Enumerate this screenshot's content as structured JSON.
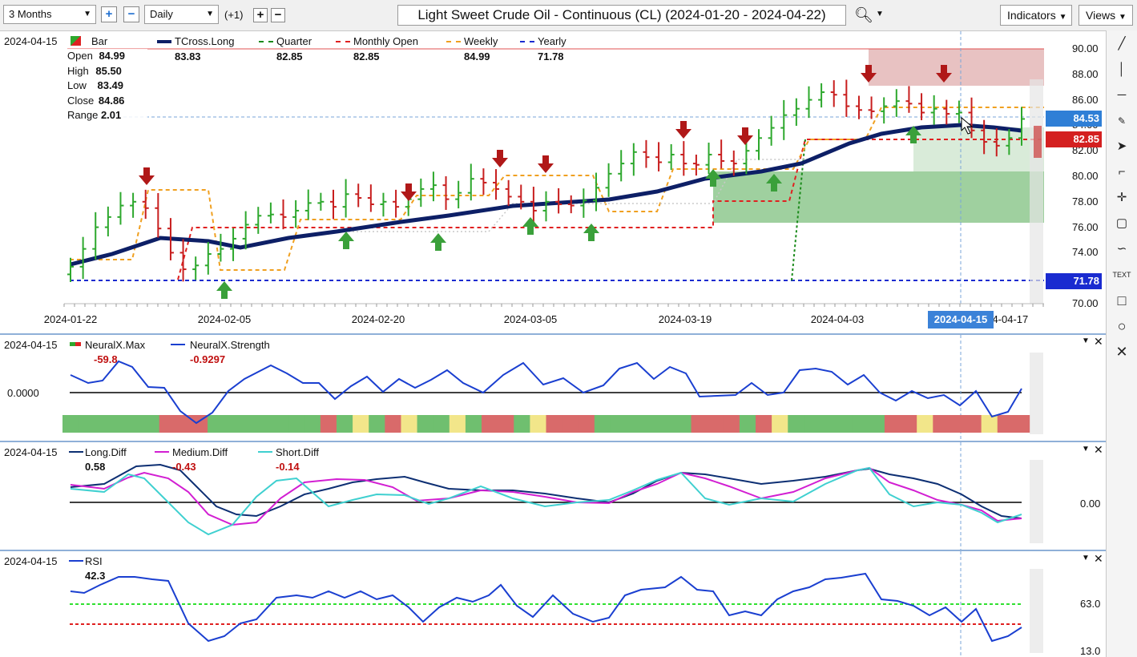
{
  "toolbar": {
    "range": "3 Months",
    "interval": "Daily",
    "offset": "(+1)",
    "title": "Light Sweet Crude Oil - Continuous (CL) (2024-01-20 - 2024-04-22)",
    "indicators": "Indicators",
    "views": "Views",
    "icons": [
      "plus-icon",
      "minus-icon",
      "search-icon",
      "chevron-down-icon"
    ]
  },
  "price_panel": {
    "date": "2024-04-15",
    "legend": [
      {
        "name": "Bar",
        "value": ""
      },
      {
        "name": "TCross.Long",
        "value": "83.83"
      },
      {
        "name": "Quarter",
        "value": "82.85"
      },
      {
        "name": "Monthly Open",
        "value": "82.85"
      },
      {
        "name": "Weekly",
        "value": "84.99"
      },
      {
        "name": "Yearly",
        "value": "71.78"
      }
    ],
    "ohlc": [
      {
        "label": "Open",
        "value": "84.99"
      },
      {
        "label": "High",
        "value": "85.50"
      },
      {
        "label": "Low",
        "value": "83.49"
      },
      {
        "label": "Close",
        "value": "84.86"
      },
      {
        "label": "Range",
        "value": "2.01"
      }
    ],
    "y_ticks": [
      "90.00",
      "88.00",
      "86.00",
      "84.00",
      "82.00",
      "80.00",
      "78.00",
      "76.00",
      "74.00",
      "72.00",
      "70.00"
    ],
    "x_ticks": [
      "2024-01-22",
      "2024-02-05",
      "2024-02-20",
      "2024-03-05",
      "2024-03-19",
      "2024-04-03",
      "2024-04-17"
    ],
    "cursor_date": "2024-04-15",
    "price_badges": [
      {
        "label": "84.53",
        "color": "#2f7fd6"
      },
      {
        "label": "82.85",
        "color": "#d42020"
      },
      {
        "label": "71.78",
        "color": "#1a2bd0"
      }
    ]
  },
  "neural_panel": {
    "date": "2024-04-15",
    "legend": [
      {
        "name": "NeuralX.Max",
        "value": "-59.8"
      },
      {
        "name": "NeuralX.Strength",
        "value": "-0.9297"
      }
    ],
    "zero_label": "0.0000"
  },
  "diff_panel": {
    "date": "2024-04-15",
    "legend": [
      {
        "name": "Long.Diff",
        "value": "0.58",
        "color": "#0d2f73"
      },
      {
        "name": "Medium.Diff",
        "value": "-0.43",
        "color": "#d21fd2"
      },
      {
        "name": "Short.Diff",
        "value": "-0.14",
        "color": "#3fd0d0"
      }
    ],
    "zero_label": "0.00"
  },
  "rsi_panel": {
    "date": "2024-04-15",
    "legend": [
      {
        "name": "RSI",
        "value": "42.3"
      }
    ],
    "upper_label": "63.0",
    "lower_label": "13.0"
  },
  "chart_data": {
    "type": "bar",
    "title": "Light Sweet Crude Oil - Continuous (CL) (2024-01-20 - 2024-04-22)",
    "x_range": [
      "2024-01-22",
      "2024-04-22"
    ],
    "ylim": [
      70,
      90
    ],
    "grid": false,
    "ohlc_close_series": [
      72.9,
      74.3,
      76.0,
      76.8,
      77.7,
      78.0,
      77.5,
      75.9,
      74.0,
      72.7,
      73.0,
      73.9,
      74.3,
      75.1,
      76.2,
      76.9,
      77.0,
      76.8,
      77.3,
      77.9,
      78.0,
      77.6,
      78.6,
      78.3,
      77.8,
      78.0,
      77.6,
      78.2,
      79.0,
      79.3,
      78.2,
      78.7,
      79.8,
      79.5,
      79.0,
      78.4,
      78.0,
      77.3,
      78.0,
      77.8,
      77.7,
      78.1,
      79.1,
      80.2,
      81.0,
      81.9,
      81.5,
      81.1,
      81.7,
      81.0,
      80.9,
      81.7,
      81.2,
      81.0,
      82.0,
      83.0,
      83.8,
      84.8,
      85.3,
      86.0,
      86.6,
      86.4,
      85.5,
      85.2,
      85.1,
      85.5,
      85.9,
      85.7,
      85.0,
      85.3,
      84.9,
      85.0,
      83.6,
      82.7,
      82.4,
      83.0,
      84.5
    ],
    "lines": [
      {
        "name": "TCross.Long",
        "value_at_cursor": 83.83
      },
      {
        "name": "Quarter",
        "value_at_cursor": 82.85
      },
      {
        "name": "Monthly Open",
        "value_at_cursor": 82.85
      },
      {
        "name": "Weekly",
        "value_at_cursor": 84.99
      },
      {
        "name": "Yearly",
        "value_at_cursor": 71.78
      }
    ],
    "cursor_ohlc": {
      "open": 84.99,
      "high": 85.5,
      "low": 83.49,
      "close": 84.86,
      "range": 2.01
    }
  }
}
